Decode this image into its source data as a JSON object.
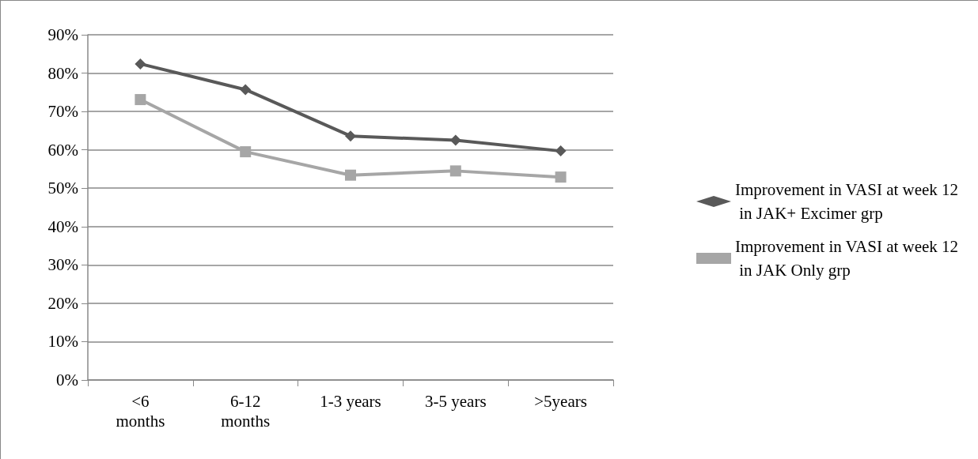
{
  "chart_data": {
    "type": "line",
    "categories": [
      "<6\nmonths",
      "6-12\nmonths",
      "1-3 years",
      "3-5 years",
      ">5years"
    ],
    "series": [
      {
        "name": "Improvement in VASI at week 12 in JAK+ Excimer grp",
        "color": "#595959",
        "marker": "diamond",
        "values": [
          82.4,
          75.7,
          63.6,
          62.5,
          59.7
        ]
      },
      {
        "name": "Improvement in VASI at week 12 in JAK Only grp",
        "color": "#a6a6a6",
        "marker": "square",
        "values": [
          73.1,
          59.5,
          53.4,
          54.5,
          52.9
        ]
      }
    ],
    "ylim": [
      0,
      90
    ],
    "yticks": [
      {
        "value": 0,
        "label": "0%"
      },
      {
        "value": 10,
        "label": "10%"
      },
      {
        "value": 20,
        "label": "20%"
      },
      {
        "value": 30,
        "label": "30%"
      },
      {
        "value": 40,
        "label": "40%"
      },
      {
        "value": 50,
        "label": "50%"
      },
      {
        "value": 60,
        "label": "60%"
      },
      {
        "value": 70,
        "label": "70%"
      },
      {
        "value": 80,
        "label": "80%"
      },
      {
        "value": 90,
        "label": "90%"
      }
    ],
    "grid": "y",
    "legend": "right",
    "line_style": "solid"
  }
}
